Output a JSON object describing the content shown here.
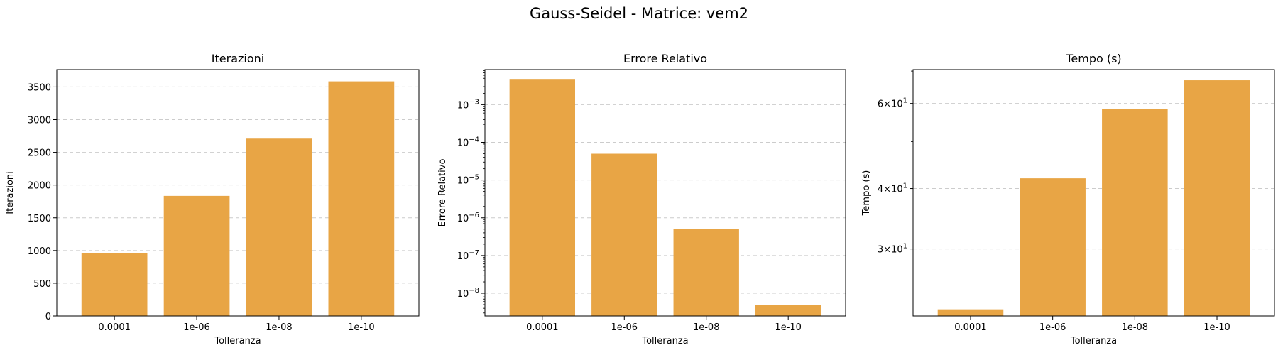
{
  "figure": {
    "title": "Gauss-Seidel - Matrice: vem2"
  },
  "style": {
    "bar_color": "#E8A545",
    "grid_color": "#cccccc"
  },
  "chart_data": [
    {
      "type": "bar",
      "title": "Iterazioni",
      "xlabel": "Tolleranza",
      "ylabel": "Iterazioni",
      "categories": [
        "0.0001",
        "1e-06",
        "1e-08",
        "1e-10"
      ],
      "values": [
        960,
        1835,
        2710,
        3585
      ],
      "yscale": "linear",
      "ylim": [
        0,
        3765
      ],
      "yticks": [
        {
          "value": 0,
          "label": "0"
        },
        {
          "value": 500,
          "label": "500"
        },
        {
          "value": 1000,
          "label": "1000"
        },
        {
          "value": 1500,
          "label": "1500"
        },
        {
          "value": 2000,
          "label": "2000"
        },
        {
          "value": 2500,
          "label": "2500"
        },
        {
          "value": 3000,
          "label": "3000"
        },
        {
          "value": 3500,
          "label": "3500"
        }
      ],
      "grid": "y-dashed",
      "legend": "none"
    },
    {
      "type": "bar",
      "title": "Errore Relativo",
      "xlabel": "Tolleranza",
      "ylabel": "Errore Relativo",
      "categories": [
        "0.0001",
        "1e-06",
        "1e-08",
        "1e-10"
      ],
      "values": [
        0.0048,
        5e-05,
        5e-07,
        5e-09
      ],
      "yscale": "log",
      "ylim": [
        2.5e-09,
        0.0085
      ],
      "yticks": [
        {
          "value": 1e-08,
          "base": "10",
          "exp": "−8"
        },
        {
          "value": 1e-07,
          "base": "10",
          "exp": "−7"
        },
        {
          "value": 1e-06,
          "base": "10",
          "exp": "−6"
        },
        {
          "value": 1e-05,
          "base": "10",
          "exp": "−5"
        },
        {
          "value": 0.0001,
          "base": "10",
          "exp": "−4"
        },
        {
          "value": 0.001,
          "base": "10",
          "exp": "−3"
        }
      ],
      "grid": "y-dashed",
      "legend": "none"
    },
    {
      "type": "bar",
      "title": "Tempo (s)",
      "xlabel": "Tolleranza",
      "ylabel": "Tempo (s)",
      "categories": [
        "0.0001",
        "1e-06",
        "1e-08",
        "1e-10"
      ],
      "values": [
        22.5,
        42,
        58.5,
        67
      ],
      "yscale": "log",
      "ylim": [
        21.8,
        70.5
      ],
      "yticks": [
        {
          "value": 30,
          "base": "3×10",
          "exp": "1"
        },
        {
          "value": 40,
          "base": "4×10",
          "exp": "1"
        },
        {
          "value": 60,
          "base": "6×10",
          "exp": "1"
        }
      ],
      "grid": "y-dashed",
      "legend": "none"
    }
  ]
}
